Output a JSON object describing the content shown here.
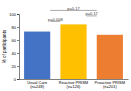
{
  "chart_data": {
    "type": "bar",
    "categories": [
      "Usual Care\n(n=248)",
      "Reactive PRISM\n(n=126)",
      "Proactive PRISM\n(n=201)"
    ],
    "values": [
      73,
      84,
      68
    ],
    "colors": [
      "#4472c4",
      "#ffc000",
      "#ed7d31"
    ],
    "ylabel": "% of participants",
    "ylim": [
      0,
      100
    ],
    "yticks": [
      0,
      20,
      40,
      60,
      80,
      100
    ],
    "grid": false,
    "annotations": [
      {
        "text": "p=0.008",
        "span": [
          "Usual Care\n(n=248)",
          "Reactive PRISM\n(n=126)"
        ]
      },
      {
        "text": "p=0.17",
        "span": [
          "Reactive PRISM\n(n=126)",
          "Proactive PRISM\n(n=201)"
        ]
      },
      {
        "text": "p=0.17",
        "span": [
          "Usual Care\n(n=248)",
          "Proactive PRISM\n(n=201)"
        ]
      }
    ]
  }
}
